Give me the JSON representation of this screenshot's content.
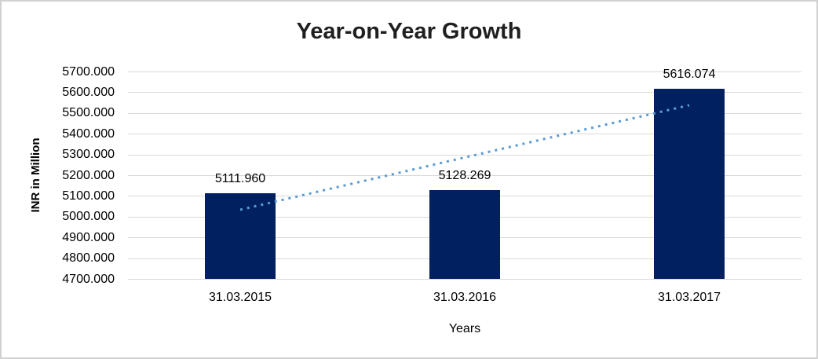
{
  "chart_data": {
    "type": "bar",
    "title": "Year-on-Year Growth",
    "xlabel": "Years",
    "ylabel": "INR in Million",
    "categories": [
      "31.03.2015",
      "31.03.2016",
      "31.03.2017"
    ],
    "values": [
      5111.96,
      5128.269,
      5616.074
    ],
    "data_labels": [
      "5111.960",
      "5128.269",
      "5616.074"
    ],
    "ylim": [
      4700,
      5700
    ],
    "ytick_step": 100,
    "ytick_labels": [
      "5700.000",
      "5600.000",
      "5500.000",
      "5400.000",
      "5300.000",
      "5200.000",
      "5100.000",
      "5000.000",
      "4900.000",
      "4800.000",
      "4700.000"
    ],
    "grid": true,
    "legend": "none",
    "colors": {
      "bar": "#002060",
      "trendline": "#5B9BD5",
      "gridline": "#D9D9D9",
      "axis_line": "#D9D9D9",
      "text": "#000000",
      "title_text": "#1F1F1F"
    },
    "trendline": {
      "type": "linear",
      "style": "dotted"
    }
  }
}
